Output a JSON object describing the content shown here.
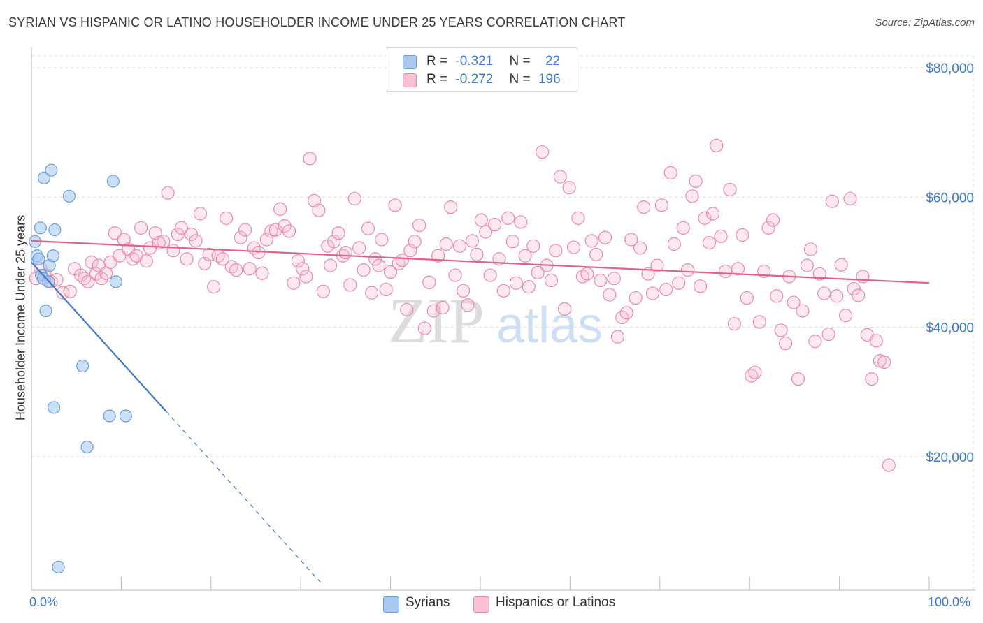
{
  "header": {
    "title": "SYRIAN VS HISPANIC OR LATINO HOUSEHOLDER INCOME UNDER 25 YEARS CORRELATION CHART",
    "source": "Source: ZipAtlas.com"
  },
  "watermark": {
    "zip": "ZIP",
    "atlas": "atlas"
  },
  "legend": {
    "r_label": "R =",
    "n_label": "N =",
    "rows": [
      {
        "r": "-0.321",
        "n": "22",
        "color": "#aac8f0",
        "border": "#6a9ed8"
      },
      {
        "r": "-0.272",
        "n": "196",
        "color": "#f9bfd2",
        "border": "#e88aab"
      }
    ]
  },
  "colors": {
    "syrian_fill": "rgba(160,196,240,0.55)",
    "syrian_stroke": "#6a9ed8",
    "syrian_line": "#3d79cc",
    "hispanic_fill": "rgba(248,190,210,0.35)",
    "hispanic_stroke": "#e88aab",
    "hispanic_line": "#e0628a",
    "tick_text": "#3d79cc",
    "grid": "#dddddd"
  },
  "chart_data": {
    "type": "scatter",
    "title": "SYRIAN VS HISPANIC OR LATINO HOUSEHOLDER INCOME UNDER 25 YEARS CORRELATION CHART",
    "xlabel": "",
    "ylabel": "Householder Income Under 25 years",
    "xlim": [
      0,
      100
    ],
    "ylim": [
      0,
      82000
    ],
    "x_tick_labels": [
      "0.0%",
      "100.0%"
    ],
    "y_ticks": [
      20000,
      40000,
      60000,
      80000
    ],
    "y_tick_labels": [
      "$20,000",
      "$40,000",
      "$60,000",
      "$80,000"
    ],
    "grid": true,
    "series": [
      {
        "name": "Syrians",
        "r": -0.321,
        "n": 22,
        "trend": {
          "x0": 0,
          "y0": 50000,
          "x1": 15,
          "y1": 27000,
          "dash_to_x": 32.2
        },
        "points": [
          [
            0.4,
            53200
          ],
          [
            0.6,
            51000
          ],
          [
            0.8,
            50500
          ],
          [
            1.0,
            55300
          ],
          [
            1.1,
            48000
          ],
          [
            1.3,
            47500
          ],
          [
            1.4,
            63000
          ],
          [
            1.6,
            42500
          ],
          [
            1.9,
            47000
          ],
          [
            2.0,
            49500
          ],
          [
            2.2,
            64200
          ],
          [
            2.4,
            51000
          ],
          [
            2.5,
            27600
          ],
          [
            2.6,
            55000
          ],
          [
            3.0,
            3000
          ],
          [
            4.2,
            60200
          ],
          [
            5.7,
            34000
          ],
          [
            6.2,
            21500
          ],
          [
            8.7,
            26300
          ],
          [
            9.1,
            62500
          ],
          [
            9.4,
            47000
          ],
          [
            10.5,
            26300
          ]
        ]
      },
      {
        "name": "Hispanics or Latinos",
        "r": -0.272,
        "n": 196,
        "trend": {
          "x0": 0,
          "y0": 53300,
          "x1": 100,
          "y1": 46800
        },
        "points": [
          [
            0.5,
            47500
          ],
          [
            1.0,
            49000
          ],
          [
            1.5,
            48000
          ],
          [
            2.2,
            47000
          ],
          [
            2.8,
            47300
          ],
          [
            3.5,
            45300
          ],
          [
            4.3,
            45500
          ],
          [
            4.8,
            49000
          ],
          [
            5.5,
            48000
          ],
          [
            5.9,
            47500
          ],
          [
            6.3,
            47000
          ],
          [
            6.7,
            50000
          ],
          [
            7.2,
            48200
          ],
          [
            7.5,
            49500
          ],
          [
            7.8,
            47500
          ],
          [
            8.3,
            48300
          ],
          [
            8.8,
            50000
          ],
          [
            9.3,
            54500
          ],
          [
            9.8,
            51000
          ],
          [
            10.3,
            53500
          ],
          [
            10.8,
            52000
          ],
          [
            11.3,
            50500
          ],
          [
            11.7,
            51000
          ],
          [
            12.2,
            55300
          ],
          [
            12.8,
            50200
          ],
          [
            13.2,
            52200
          ],
          [
            13.8,
            54500
          ],
          [
            14.2,
            53000
          ],
          [
            14.7,
            53200
          ],
          [
            15.2,
            60700
          ],
          [
            15.8,
            51800
          ],
          [
            16.3,
            54300
          ],
          [
            16.7,
            55300
          ],
          [
            17.3,
            50500
          ],
          [
            17.8,
            54300
          ],
          [
            18.3,
            53300
          ],
          [
            18.8,
            57500
          ],
          [
            19.3,
            49800
          ],
          [
            19.8,
            51200
          ],
          [
            20.3,
            46200
          ],
          [
            20.8,
            51000
          ],
          [
            21.3,
            50500
          ],
          [
            21.7,
            56800
          ],
          [
            22.3,
            49300
          ],
          [
            22.8,
            48800
          ],
          [
            23.3,
            53800
          ],
          [
            23.8,
            55000
          ],
          [
            24.3,
            49000
          ],
          [
            24.8,
            52200
          ],
          [
            25.3,
            51500
          ],
          [
            25.7,
            48300
          ],
          [
            26.2,
            53500
          ],
          [
            26.7,
            54800
          ],
          [
            27.2,
            55000
          ],
          [
            27.7,
            58200
          ],
          [
            28.2,
            55600
          ],
          [
            28.7,
            54800
          ],
          [
            29.2,
            46800
          ],
          [
            29.7,
            50200
          ],
          [
            30.2,
            49000
          ],
          [
            30.6,
            47800
          ],
          [
            31.0,
            66000
          ],
          [
            31.5,
            59500
          ],
          [
            32.0,
            58000
          ],
          [
            32.5,
            45500
          ],
          [
            33.0,
            52500
          ],
          [
            33.3,
            49500
          ],
          [
            33.7,
            53200
          ],
          [
            34.2,
            54500
          ],
          [
            34.7,
            51000
          ],
          [
            35.0,
            51500
          ],
          [
            35.5,
            46500
          ],
          [
            36.0,
            59800
          ],
          [
            36.5,
            52200
          ],
          [
            37.0,
            48800
          ],
          [
            37.5,
            55200
          ],
          [
            37.9,
            45300
          ],
          [
            38.3,
            50500
          ],
          [
            38.7,
            49500
          ],
          [
            39.0,
            53500
          ],
          [
            39.5,
            45800
          ],
          [
            40.0,
            48500
          ],
          [
            40.5,
            58800
          ],
          [
            40.9,
            49800
          ],
          [
            41.3,
            50300
          ],
          [
            41.8,
            42700
          ],
          [
            42.2,
            51800
          ],
          [
            42.7,
            53200
          ],
          [
            43.2,
            55700
          ],
          [
            43.8,
            39800
          ],
          [
            44.3,
            46900
          ],
          [
            44.8,
            42500
          ],
          [
            45.3,
            51000
          ],
          [
            45.8,
            43000
          ],
          [
            46.2,
            52800
          ],
          [
            46.7,
            58500
          ],
          [
            47.2,
            48000
          ],
          [
            47.7,
            52500
          ],
          [
            48.1,
            45600
          ],
          [
            48.6,
            43400
          ],
          [
            49.1,
            53300
          ],
          [
            49.6,
            51200
          ],
          [
            50.1,
            56500
          ],
          [
            50.6,
            54700
          ],
          [
            51.1,
            48000
          ],
          [
            51.6,
            55800
          ],
          [
            52.1,
            50500
          ],
          [
            52.6,
            45600
          ],
          [
            53.1,
            56800
          ],
          [
            53.6,
            53200
          ],
          [
            54.0,
            46800
          ],
          [
            54.5,
            56200
          ],
          [
            55.0,
            51000
          ],
          [
            55.4,
            46200
          ],
          [
            55.9,
            52500
          ],
          [
            56.4,
            48400
          ],
          [
            56.9,
            67000
          ],
          [
            57.4,
            49500
          ],
          [
            57.9,
            47200
          ],
          [
            58.4,
            51800
          ],
          [
            58.9,
            63200
          ],
          [
            59.4,
            42800
          ],
          [
            59.9,
            61500
          ],
          [
            60.4,
            52300
          ],
          [
            60.9,
            56800
          ],
          [
            61.4,
            47800
          ],
          [
            61.9,
            48200
          ],
          [
            62.4,
            53300
          ],
          [
            62.9,
            51200
          ],
          [
            63.4,
            47200
          ],
          [
            63.9,
            53800
          ],
          [
            64.4,
            45000
          ],
          [
            64.9,
            47500
          ],
          [
            65.3,
            38500
          ],
          [
            65.8,
            41500
          ],
          [
            66.3,
            42200
          ],
          [
            66.8,
            53500
          ],
          [
            67.3,
            44500
          ],
          [
            67.8,
            52200
          ],
          [
            68.2,
            58500
          ],
          [
            68.7,
            48200
          ],
          [
            69.2,
            45200
          ],
          [
            69.7,
            49500
          ],
          [
            70.2,
            58800
          ],
          [
            70.7,
            45800
          ],
          [
            71.2,
            63800
          ],
          [
            71.6,
            52800
          ],
          [
            72.1,
            46800
          ],
          [
            72.6,
            55300
          ],
          [
            73.1,
            48800
          ],
          [
            73.6,
            60200
          ],
          [
            74.0,
            62500
          ],
          [
            74.5,
            46300
          ],
          [
            75.0,
            56800
          ],
          [
            75.5,
            53000
          ],
          [
            75.9,
            57500
          ],
          [
            76.3,
            68000
          ],
          [
            76.8,
            54000
          ],
          [
            77.3,
            48600
          ],
          [
            77.8,
            61200
          ],
          [
            78.3,
            40500
          ],
          [
            78.7,
            49000
          ],
          [
            79.2,
            54200
          ],
          [
            79.7,
            44500
          ],
          [
            80.2,
            32500
          ],
          [
            80.6,
            33000
          ],
          [
            81.1,
            40800
          ],
          [
            81.6,
            48600
          ],
          [
            82.1,
            55300
          ],
          [
            82.6,
            56500
          ],
          [
            83.0,
            44800
          ],
          [
            83.5,
            39500
          ],
          [
            84.0,
            37500
          ],
          [
            84.4,
            47800
          ],
          [
            84.9,
            43800
          ],
          [
            85.4,
            32000
          ],
          [
            85.9,
            42500
          ],
          [
            86.4,
            49500
          ],
          [
            86.8,
            52000
          ],
          [
            87.3,
            37800
          ],
          [
            87.8,
            48200
          ],
          [
            88.3,
            45200
          ],
          [
            88.8,
            38900
          ],
          [
            89.2,
            59400
          ],
          [
            89.7,
            44800
          ],
          [
            90.2,
            49600
          ],
          [
            90.7,
            41800
          ],
          [
            91.2,
            59800
          ],
          [
            91.6,
            45900
          ],
          [
            92.1,
            44900
          ],
          [
            92.6,
            47800
          ],
          [
            93.1,
            38800
          ],
          [
            93.6,
            32000
          ],
          [
            94.1,
            37900
          ],
          [
            94.5,
            34800
          ],
          [
            95.0,
            34600
          ],
          [
            95.5,
            18700
          ]
        ]
      }
    ]
  }
}
